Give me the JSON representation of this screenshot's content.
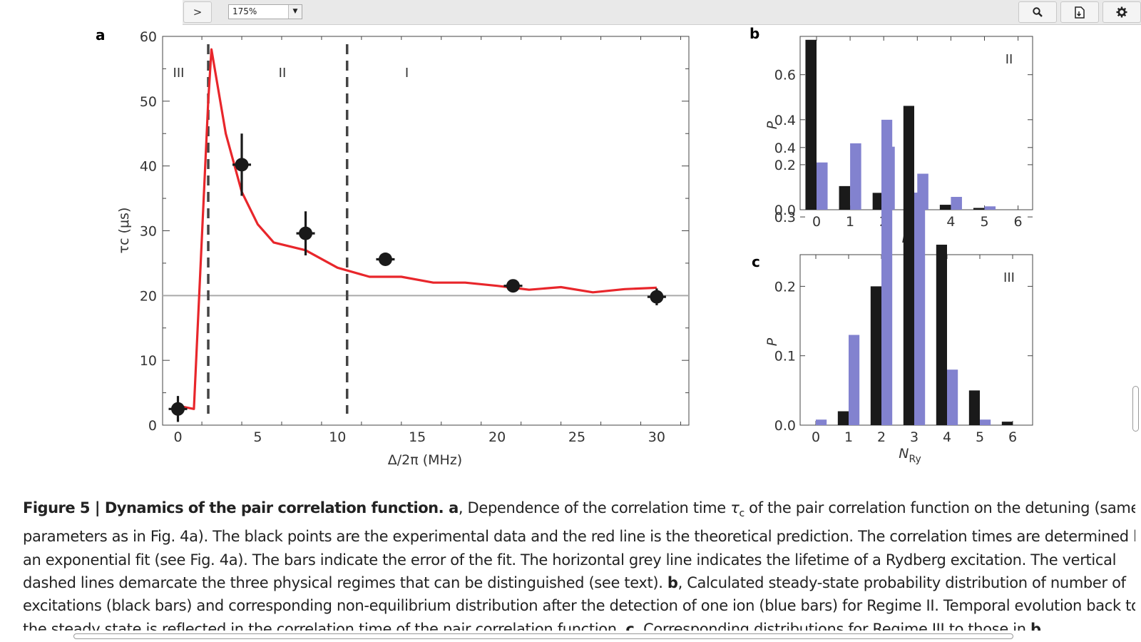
{
  "toolbar": {
    "next_label": ">",
    "zoom_value": "175%",
    "search_icon": "search-icon",
    "export_icon": "document-export-icon",
    "settings_icon": "gear-icon"
  },
  "panel_labels": {
    "a": "a",
    "b": "b",
    "c": "c"
  },
  "chart_data": [
    {
      "type": "line",
      "panel": "a",
      "xlabel": "Δ/2π (MHz)",
      "ylabel": "τc (μs)",
      "xlim": [
        -1,
        32
      ],
      "ylim": [
        0,
        60
      ],
      "xticks": [
        0,
        5,
        10,
        15,
        20,
        25,
        30
      ],
      "yticks": [
        0,
        10,
        20,
        30,
        40,
        50,
        60
      ],
      "regime_labels": [
        {
          "text": "III",
          "x": 0
        },
        {
          "text": "II",
          "x": 6.5
        },
        {
          "text": "I",
          "x": 14.3
        }
      ],
      "dashed_lines_x": [
        1.9,
        10.6
      ],
      "lifetime_line_y": 20,
      "theory": {
        "x": [
          0,
          1.0,
          1.9,
          2.1,
          3.0,
          4.0,
          5.0,
          6.0,
          8.0,
          10.0,
          12.0,
          14.0,
          16.0,
          18.0,
          20.0,
          21.0,
          22.0,
          24.0,
          26.0,
          28.0,
          30.0
        ],
        "y": [
          3.0,
          2.5,
          50,
          58,
          45,
          36,
          31,
          28.2,
          27,
          24.3,
          22.9,
          22.9,
          22.0,
          22.0,
          21.5,
          21.2,
          20.9,
          21.3,
          20.5,
          21.0,
          21.2
        ]
      },
      "experiment": {
        "x": [
          0,
          4.0,
          8.0,
          13.0,
          21.0,
          30.0
        ],
        "y": [
          2.5,
          40.2,
          29.6,
          25.6,
          21.5,
          19.8
        ],
        "yerr": [
          2.0,
          4.8,
          3.4,
          0.8,
          0.6,
          1.3
        ]
      }
    },
    {
      "type": "bar",
      "panel": "b",
      "xlabel": "NRy",
      "ylabel": "P",
      "regime": "II",
      "categories": [
        0,
        1,
        2,
        3,
        4,
        5,
        6
      ],
      "ylim": [
        0,
        0.75
      ],
      "yticks": [
        0.0,
        0.2,
        0.4,
        0.6
      ],
      "series": [
        {
          "color": "#1a1a1a",
          "values": [
            0.755,
            0.105,
            0.075,
            0.048,
            0.022,
            0.008,
            0.0
          ]
        },
        {
          "color": "#8282cf",
          "values": [
            0.21,
            0.295,
            0.28,
            0.16,
            0.057,
            0.015,
            0.0
          ]
        }
      ]
    },
    {
      "type": "bar",
      "panel": "c",
      "xlabel": "NRy",
      "ylabel": "P",
      "regime": "III",
      "categories": [
        0,
        1,
        2,
        3,
        4,
        5,
        6
      ],
      "ylim": [
        0,
        0.46
      ],
      "yticks": [
        0.0,
        0.1,
        0.2,
        0.3,
        0.4
      ],
      "series": [
        {
          "color": "#1a1a1a",
          "values": [
            0.0,
            0.02,
            0.2,
            0.46,
            0.26,
            0.05,
            0.005
          ]
        },
        {
          "color": "#8282cf",
          "values": [
            0.008,
            0.13,
            0.44,
            0.335,
            0.08,
            0.008,
            0.0
          ]
        }
      ]
    }
  ],
  "caption": {
    "title_bold": "Figure 5 | Dynamics of the pair correlation function.",
    "lines": [
      [
        [
          "b",
          " a"
        ],
        [
          "t",
          ", Dependence of the correlation time "
        ],
        [
          "i",
          "τ"
        ],
        [
          "s",
          "c"
        ],
        [
          "t",
          " of the pair correlation function on the detuning (same"
        ]
      ],
      [
        [
          "t",
          "parameters as in Fig. 4a). The black points are the experimental data and the red line is the theoretical prediction. The correlation times are determined by"
        ]
      ],
      [
        [
          "t",
          "an exponential fit (see Fig. 4a). The bars indicate the error of the fit. The horizontal grey line indicates the lifetime of a Rydberg excitation. The vertical"
        ]
      ],
      [
        [
          "t",
          "dashed lines demarcate the three physical regimes that can be distinguished (see text). "
        ],
        [
          "b",
          "b"
        ],
        [
          "t",
          ", Calculated steady-state probability distribution of number of"
        ]
      ],
      [
        [
          "t",
          "excitations (black bars) and corresponding non-equilibrium distribution after the detection of one ion (blue bars) for Regime II. Temporal evolution back to"
        ]
      ],
      [
        [
          "t",
          "the steady state is reflected in the correlation time of the pair correlation function. "
        ],
        [
          "b",
          "c"
        ],
        [
          "t",
          ", Corresponding distributions for Regime III to those in "
        ],
        [
          "b",
          "b"
        ],
        [
          "t",
          "."
        ]
      ]
    ]
  }
}
